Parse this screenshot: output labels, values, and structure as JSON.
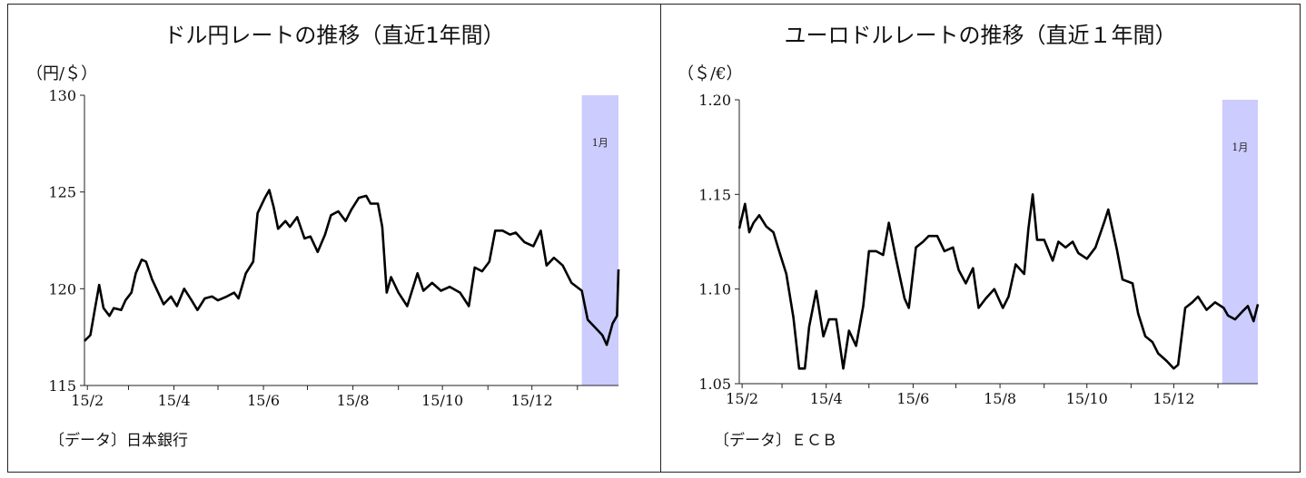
{
  "chart_data": [
    {
      "type": "line",
      "title": "ドル円レートの推移（直近1年間）",
      "ylabel": "（円/＄）",
      "source": "〔データ〕日本銀行",
      "annotation": "1月",
      "highlight": {
        "from": "2016-01-04",
        "to": "2016-01-29",
        "color": "#ccccff"
      },
      "x_range": [
        "2015-01-30",
        "2016-01-29"
      ],
      "ylim": [
        115,
        130
      ],
      "yticks": [
        "115",
        "120",
        "125",
        "130"
      ],
      "xticks": [
        {
          "date": "2015-02-01",
          "label": "15/2"
        },
        {
          "date": "2015-04-01",
          "label": "15/4"
        },
        {
          "date": "2015-06-01",
          "label": "15/6"
        },
        {
          "date": "2015-08-01",
          "label": "15/8"
        },
        {
          "date": "2015-10-01",
          "label": "15/10"
        },
        {
          "date": "2015-12-01",
          "label": "15/12"
        }
      ],
      "series": [
        {
          "x": [
            "2015-01-30",
            "2015-02-03",
            "2015-02-06",
            "2015-02-09",
            "2015-02-12",
            "2015-02-16",
            "2015-02-19",
            "2015-02-24",
            "2015-02-27",
            "2015-03-03",
            "2015-03-06",
            "2015-03-10",
            "2015-03-13",
            "2015-03-17",
            "2015-03-20",
            "2015-03-25",
            "2015-03-30",
            "2015-04-03",
            "2015-04-08",
            "2015-04-13",
            "2015-04-17",
            "2015-04-22",
            "2015-04-27",
            "2015-05-01",
            "2015-05-07",
            "2015-05-12",
            "2015-05-15",
            "2015-05-20",
            "2015-05-25",
            "2015-05-28",
            "2015-06-02",
            "2015-06-05",
            "2015-06-08",
            "2015-06-11",
            "2015-06-16",
            "2015-06-19",
            "2015-06-24",
            "2015-06-29",
            "2015-07-03",
            "2015-07-08",
            "2015-07-13",
            "2015-07-17",
            "2015-07-22",
            "2015-07-27",
            "2015-07-31",
            "2015-08-05",
            "2015-08-10",
            "2015-08-13",
            "2015-08-18",
            "2015-08-21",
            "2015-08-24",
            "2015-08-27",
            "2015-09-01",
            "2015-09-07",
            "2015-09-14",
            "2015-09-18",
            "2015-09-24",
            "2015-09-30",
            "2015-10-06",
            "2015-10-13",
            "2015-10-19",
            "2015-10-23",
            "2015-10-28",
            "2015-11-02",
            "2015-11-06",
            "2015-11-11",
            "2015-11-16",
            "2015-11-20",
            "2015-11-26",
            "2015-12-02",
            "2015-12-07",
            "2015-12-11",
            "2015-12-16",
            "2015-12-22",
            "2015-12-28",
            "2016-01-04",
            "2016-01-08",
            "2016-01-13",
            "2016-01-18",
            "2016-01-21",
            "2016-01-25",
            "2016-01-28",
            "2016-01-29"
          ],
          "values": [
            117.3,
            117.6,
            118.9,
            120.2,
            119.0,
            118.6,
            119.0,
            118.9,
            119.4,
            119.8,
            120.8,
            121.5,
            121.4,
            120.5,
            120.0,
            119.2,
            119.6,
            119.1,
            120.0,
            119.4,
            118.9,
            119.5,
            119.6,
            119.4,
            119.6,
            119.8,
            119.5,
            120.8,
            121.4,
            123.9,
            124.7,
            125.1,
            124.2,
            123.1,
            123.5,
            123.2,
            123.7,
            122.6,
            122.7,
            121.9,
            122.8,
            123.8,
            124.0,
            123.5,
            124.1,
            124.7,
            124.8,
            124.4,
            124.4,
            123.2,
            119.8,
            120.6,
            119.8,
            119.1,
            120.8,
            119.9,
            120.3,
            119.9,
            120.1,
            119.8,
            119.1,
            121.1,
            120.9,
            121.4,
            123.0,
            123.0,
            122.8,
            122.9,
            122.4,
            122.2,
            123.0,
            121.2,
            121.6,
            121.2,
            120.3,
            119.9,
            118.4,
            118.0,
            117.6,
            117.1,
            118.2,
            118.6,
            121.0
          ]
        }
      ]
    },
    {
      "type": "line",
      "title": "ユーロドルレートの推移（直近１年間）",
      "ylabel": "（＄/€）",
      "source": "〔データ〕ＥＣＢ",
      "annotation": "1月",
      "highlight": {
        "from": "2016-01-04",
        "to": "2016-01-29",
        "color": "#ccccff"
      },
      "x_range": [
        "2015-01-30",
        "2016-01-29"
      ],
      "ylim": [
        1.05,
        1.2
      ],
      "yticks": [
        "1.05",
        "1.10",
        "1.15",
        "1.20"
      ],
      "xticks": [
        {
          "date": "2015-02-01",
          "label": "15/2"
        },
        {
          "date": "2015-04-01",
          "label": "15/4"
        },
        {
          "date": "2015-06-01",
          "label": "15/6"
        },
        {
          "date": "2015-08-01",
          "label": "15/8"
        },
        {
          "date": "2015-10-01",
          "label": "15/10"
        },
        {
          "date": "2015-12-01",
          "label": "15/12"
        }
      ],
      "series": [
        {
          "x": [
            "2015-01-30",
            "2015-02-03",
            "2015-02-06",
            "2015-02-09",
            "2015-02-13",
            "2015-02-18",
            "2015-02-23",
            "2015-02-27",
            "2015-03-04",
            "2015-03-09",
            "2015-03-13",
            "2015-03-17",
            "2015-03-20",
            "2015-03-25",
            "2015-03-30",
            "2015-04-03",
            "2015-04-08",
            "2015-04-13",
            "2015-04-17",
            "2015-04-22",
            "2015-04-27",
            "2015-05-01",
            "2015-05-06",
            "2015-05-11",
            "2015-05-15",
            "2015-05-20",
            "2015-05-26",
            "2015-05-29",
            "2015-06-03",
            "2015-06-08",
            "2015-06-12",
            "2015-06-18",
            "2015-06-23",
            "2015-06-29",
            "2015-07-03",
            "2015-07-08",
            "2015-07-13",
            "2015-07-17",
            "2015-07-22",
            "2015-07-28",
            "2015-08-03",
            "2015-08-07",
            "2015-08-12",
            "2015-08-18",
            "2015-08-21",
            "2015-08-24",
            "2015-08-27",
            "2015-09-01",
            "2015-09-07",
            "2015-09-11",
            "2015-09-16",
            "2015-09-21",
            "2015-09-25",
            "2015-10-01",
            "2015-10-07",
            "2015-10-13",
            "2015-10-16",
            "2015-10-22",
            "2015-10-26",
            "2015-11-02",
            "2015-11-06",
            "2015-11-11",
            "2015-11-16",
            "2015-11-20",
            "2015-11-26",
            "2015-12-01",
            "2015-12-04",
            "2015-12-09",
            "2015-12-14",
            "2015-12-18",
            "2015-12-24",
            "2015-12-30",
            "2016-01-05",
            "2016-01-08",
            "2016-01-13",
            "2016-01-18",
            "2016-01-22",
            "2016-01-26",
            "2016-01-29"
          ],
          "values": [
            1.132,
            1.145,
            1.13,
            1.135,
            1.139,
            1.133,
            1.13,
            1.12,
            1.108,
            1.085,
            1.058,
            1.058,
            1.08,
            1.099,
            1.075,
            1.084,
            1.084,
            1.058,
            1.078,
            1.07,
            1.091,
            1.12,
            1.12,
            1.118,
            1.135,
            1.116,
            1.095,
            1.09,
            1.122,
            1.125,
            1.128,
            1.128,
            1.12,
            1.122,
            1.11,
            1.103,
            1.111,
            1.09,
            1.095,
            1.1,
            1.09,
            1.096,
            1.113,
            1.108,
            1.132,
            1.15,
            1.126,
            1.126,
            1.115,
            1.125,
            1.122,
            1.125,
            1.119,
            1.116,
            1.122,
            1.135,
            1.142,
            1.121,
            1.105,
            1.103,
            1.087,
            1.075,
            1.072,
            1.066,
            1.062,
            1.058,
            1.06,
            1.09,
            1.093,
            1.096,
            1.089,
            1.093,
            1.09,
            1.086,
            1.084,
            1.088,
            1.091,
            1.083,
            1.092
          ]
        }
      ]
    }
  ]
}
